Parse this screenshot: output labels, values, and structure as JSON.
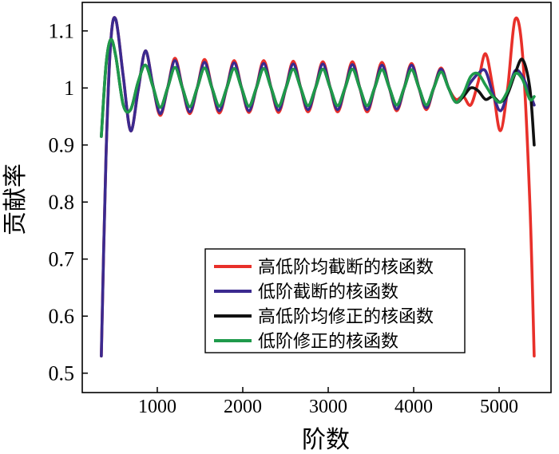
{
  "chart_data": {
    "type": "line",
    "xlabel": "阶数",
    "ylabel": "贡献率",
    "xlim": [
      122,
      5607
    ],
    "ylim": [
      0.466,
      1.15
    ],
    "xticks": [
      1000,
      2000,
      3000,
      4000,
      5000
    ],
    "xtick_labels": [
      "1000",
      "2000",
      "3000",
      "4000",
      "5000"
    ],
    "yticks": [
      0.5,
      0.6,
      0.7,
      0.8,
      0.9,
      1.0,
      1.1
    ],
    "ytick_labels": [
      "0.5",
      "0.6",
      "0.7",
      "0.8",
      "0.9",
      "1",
      "1.1"
    ],
    "grid": false,
    "legend_position": "lower-center",
    "x": [
      345,
      400,
      455,
      515,
      602,
      688,
      775,
      861,
      948,
      1034,
      1121,
      1207,
      1294,
      1380,
      1467,
      1553,
      1640,
      1726,
      1813,
      1899,
      1986,
      2072,
      2159,
      2245,
      2332,
      2418,
      2505,
      2591,
      2678,
      2764,
      2851,
      2937,
      3024,
      3110,
      3197,
      3283,
      3370,
      3456,
      3543,
      3629,
      3716,
      3802,
      3889,
      3975,
      4062,
      4148,
      4235,
      4321,
      4408,
      4494,
      4581,
      4667,
      4754,
      4840,
      4927,
      5013,
      5100,
      5186,
      5273,
      5359,
      5410
    ],
    "series": [
      {
        "name": "高低阶均截断的核函数",
        "color": "#e8302a",
        "values": [
          0.53,
          0.88,
          1.08,
          1.12,
          1.02,
          0.925,
          0.995,
          1.065,
          1.005,
          0.952,
          1.0,
          1.052,
          1.0,
          0.955,
          1.0,
          1.05,
          1.0,
          0.956,
          1.0,
          1.048,
          1.0,
          0.957,
          1.0,
          1.048,
          1.0,
          0.957,
          1.0,
          1.047,
          1.0,
          0.958,
          1.0,
          1.046,
          1.0,
          0.958,
          1.0,
          1.046,
          1.0,
          0.958,
          1.0,
          1.045,
          1.0,
          0.96,
          1.0,
          1.043,
          1.0,
          0.962,
          1.0,
          1.035,
          1.0,
          0.98,
          0.985,
          0.97,
          1.01,
          1.06,
          1.0,
          0.925,
          1.0,
          1.12,
          1.06,
          0.8,
          0.53
        ]
      },
      {
        "name": "低阶截断的核函数",
        "color": "#3b2a8f",
        "values": [
          0.53,
          0.88,
          1.08,
          1.12,
          1.02,
          0.925,
          0.995,
          1.065,
          1.005,
          0.955,
          1.0,
          1.048,
          1.0,
          0.958,
          1.0,
          1.045,
          1.0,
          0.96,
          1.0,
          1.044,
          1.0,
          0.96,
          1.0,
          1.043,
          1.0,
          0.961,
          1.0,
          1.042,
          1.0,
          0.962,
          1.0,
          1.042,
          1.0,
          0.962,
          1.0,
          1.041,
          1.0,
          0.962,
          1.0,
          1.04,
          1.0,
          0.963,
          1.0,
          1.04,
          1.0,
          0.965,
          1.0,
          1.033,
          1.0,
          0.975,
          0.99,
          1.01,
          1.025,
          1.03,
          0.99,
          0.96,
          0.99,
          1.03,
          1.02,
          0.99,
          0.97
        ]
      },
      {
        "name": "高低阶均修正的核函数",
        "color": "#111111",
        "values": [
          0.915,
          1.04,
          1.085,
          1.055,
          0.97,
          0.962,
          1.01,
          1.04,
          1.003,
          0.966,
          1.0,
          1.036,
          1.0,
          0.967,
          1.0,
          1.035,
          1.0,
          0.968,
          1.0,
          1.034,
          1.0,
          0.968,
          1.0,
          1.034,
          1.0,
          0.968,
          1.0,
          1.033,
          1.0,
          0.969,
          1.0,
          1.033,
          1.0,
          0.969,
          1.0,
          1.033,
          1.0,
          0.969,
          1.0,
          1.032,
          1.0,
          0.97,
          1.0,
          1.032,
          1.0,
          0.97,
          1.0,
          1.028,
          1.0,
          0.975,
          0.985,
          1.0,
          0.995,
          0.98,
          0.985,
          0.975,
          0.99,
          1.025,
          1.05,
          1.0,
          0.9
        ]
      },
      {
        "name": "低阶修正的核函数",
        "color": "#1f9a4b",
        "values": [
          0.915,
          1.04,
          1.085,
          1.055,
          0.97,
          0.962,
          1.01,
          1.04,
          1.003,
          0.966,
          1.0,
          1.036,
          1.0,
          0.967,
          1.0,
          1.035,
          1.0,
          0.968,
          1.0,
          1.034,
          1.0,
          0.968,
          1.0,
          1.034,
          1.0,
          0.968,
          1.0,
          1.033,
          1.0,
          0.969,
          1.0,
          1.033,
          1.0,
          0.969,
          1.0,
          1.033,
          1.0,
          0.969,
          1.0,
          1.032,
          1.0,
          0.97,
          1.0,
          1.032,
          1.0,
          0.97,
          1.0,
          1.028,
          1.0,
          0.975,
          0.99,
          1.02,
          1.025,
          1.005,
          0.985,
          0.975,
          0.995,
          1.025,
          1.015,
          0.98,
          0.985
        ]
      }
    ]
  }
}
